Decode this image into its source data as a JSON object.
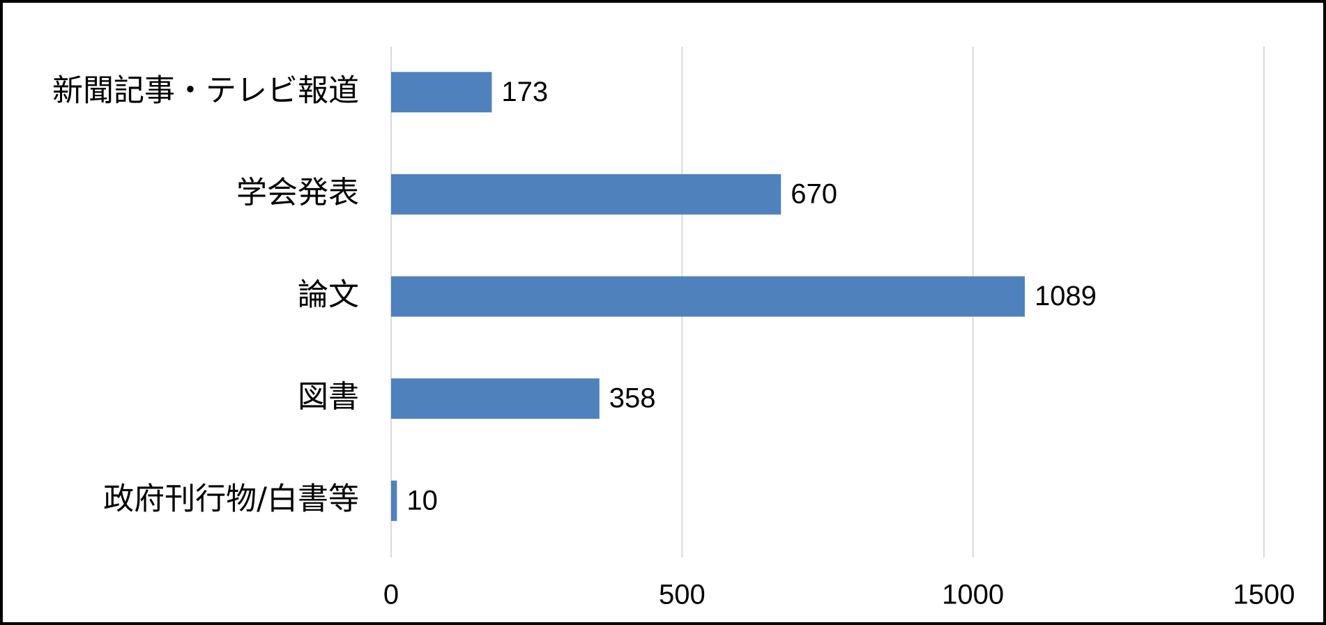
{
  "chart_data": {
    "type": "hbar",
    "categories": [
      "新聞記事・テレビ報道",
      "学会発表",
      "論文",
      "図書",
      "政府刊行物/白書等"
    ],
    "values": [
      173,
      670,
      1089,
      358,
      10
    ],
    "color": "#4f81bd",
    "xlim": [
      0,
      1500
    ],
    "xticks": [
      0,
      500,
      1000,
      1500
    ],
    "grid": true
  }
}
